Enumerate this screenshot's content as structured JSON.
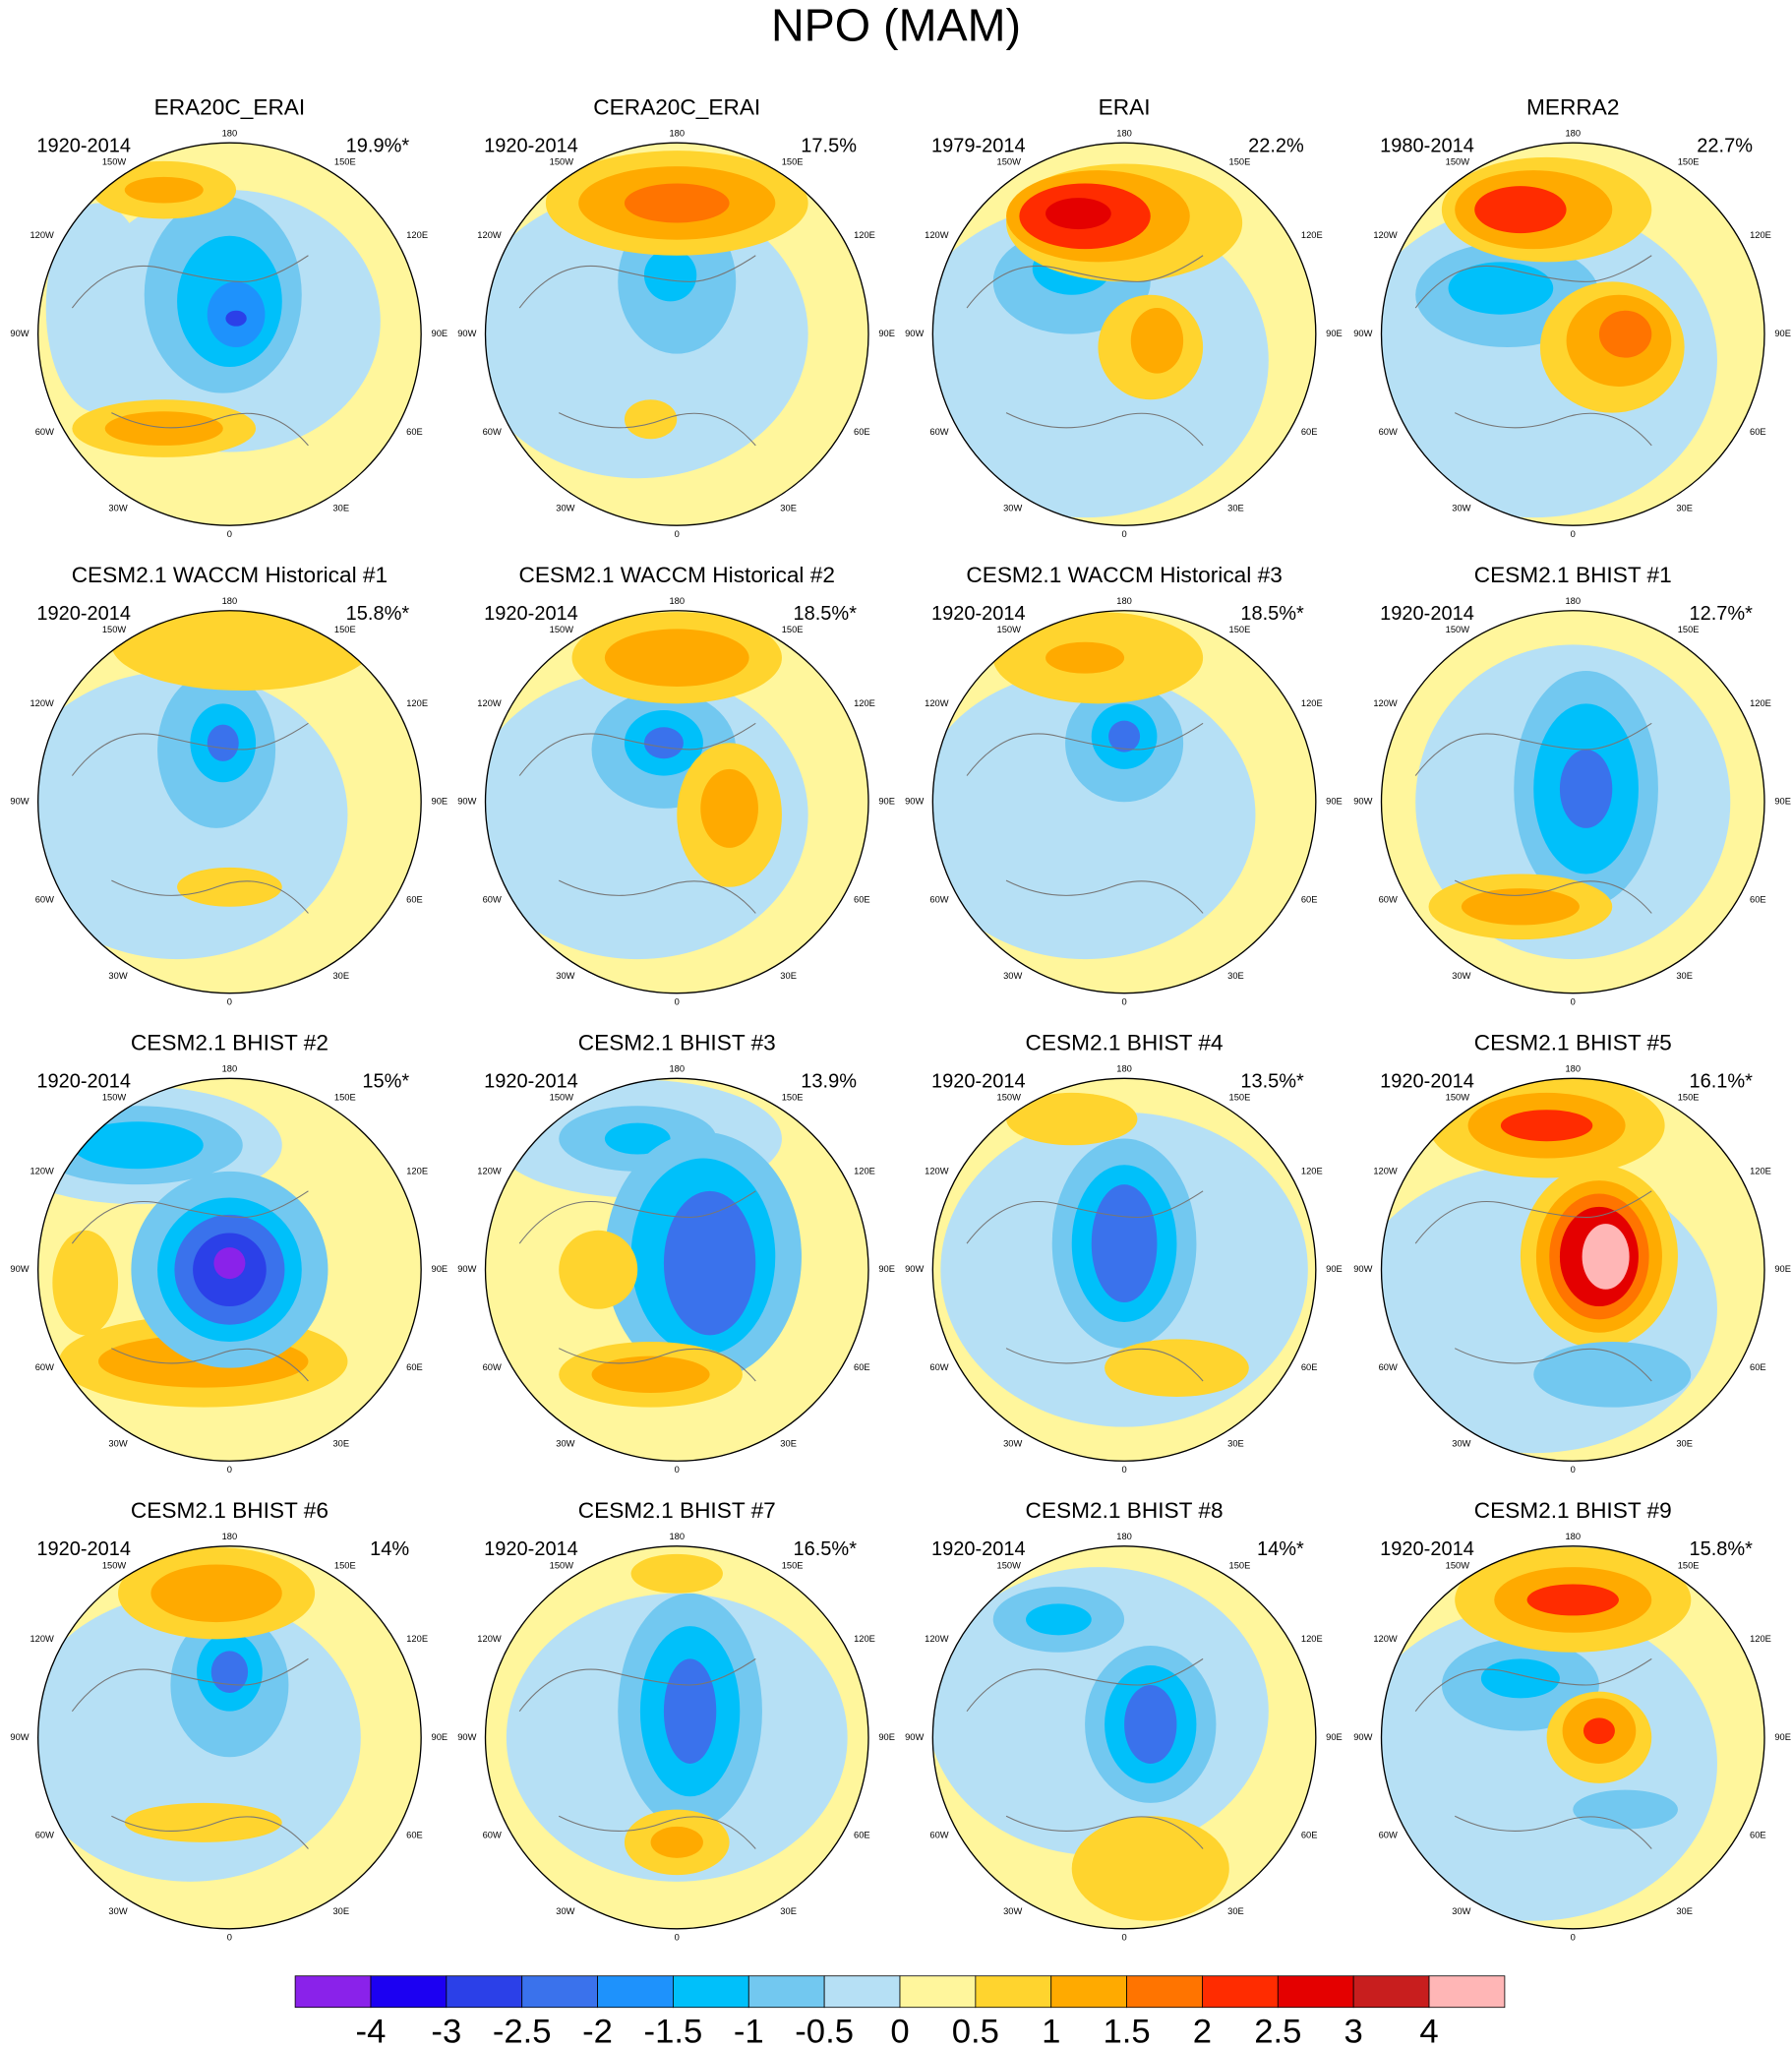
{
  "title": "NPO (MAM)",
  "longitude_labels": [
    "180",
    "150W",
    "150E",
    "120W",
    "120E",
    "90W",
    "90E",
    "60W",
    "60E",
    "30W",
    "30E",
    "0"
  ],
  "panels": [
    {
      "title": "ERA20C_ERAI",
      "period": "1920-2014",
      "variance": "19.9%*"
    },
    {
      "title": "CERA20C_ERAI",
      "period": "1920-2014",
      "variance": "17.5%"
    },
    {
      "title": "ERAI",
      "period": "1979-2014",
      "variance": "22.2%"
    },
    {
      "title": "MERRA2",
      "period": "1980-2014",
      "variance": "22.7%"
    },
    {
      "title": "CESM2.1 WACCM Historical #1",
      "period": "1920-2014",
      "variance": "15.8%*"
    },
    {
      "title": "CESM2.1 WACCM Historical #2",
      "period": "1920-2014",
      "variance": "18.5%*"
    },
    {
      "title": "CESM2.1 WACCM Historical #3",
      "period": "1920-2014",
      "variance": "18.5%*"
    },
    {
      "title": "CESM2.1 BHIST #1",
      "period": "1920-2014",
      "variance": "12.7%*"
    },
    {
      "title": "CESM2.1 BHIST #2",
      "period": "1920-2014",
      "variance": "15%*"
    },
    {
      "title": "CESM2.1 BHIST #3",
      "period": "1920-2014",
      "variance": "13.9%"
    },
    {
      "title": "CESM2.1 BHIST #4",
      "period": "1920-2014",
      "variance": "13.5%*"
    },
    {
      "title": "CESM2.1 BHIST #5",
      "period": "1920-2014",
      "variance": "16.1%*"
    },
    {
      "title": "CESM2.1 BHIST #6",
      "period": "1920-2014",
      "variance": "14%"
    },
    {
      "title": "CESM2.1 BHIST #7",
      "period": "1920-2014",
      "variance": "16.5%*"
    },
    {
      "title": "CESM2.1 BHIST #8",
      "period": "1920-2014",
      "variance": "14%*"
    },
    {
      "title": "CESM2.1 BHIST #9",
      "period": "1920-2014",
      "variance": "15.8%*"
    }
  ],
  "colorbar": {
    "levels": [
      -4,
      -3,
      -2.5,
      -2,
      -1.5,
      -1,
      -0.5,
      0,
      0.5,
      1,
      1.5,
      2,
      2.5,
      3,
      4
    ],
    "colors": [
      "#8a22ea",
      "#1c00f2",
      "#2b40e8",
      "#3a72ec",
      "#1e92fc",
      "#00c0fa",
      "#72c8f0",
      "#b6e0f5",
      "#fff69c",
      "#ffd42e",
      "#ffaa00",
      "#ff7400",
      "#ff2c00",
      "#e40000",
      "#c81e1e",
      "#ffb6b6"
    ]
  }
}
